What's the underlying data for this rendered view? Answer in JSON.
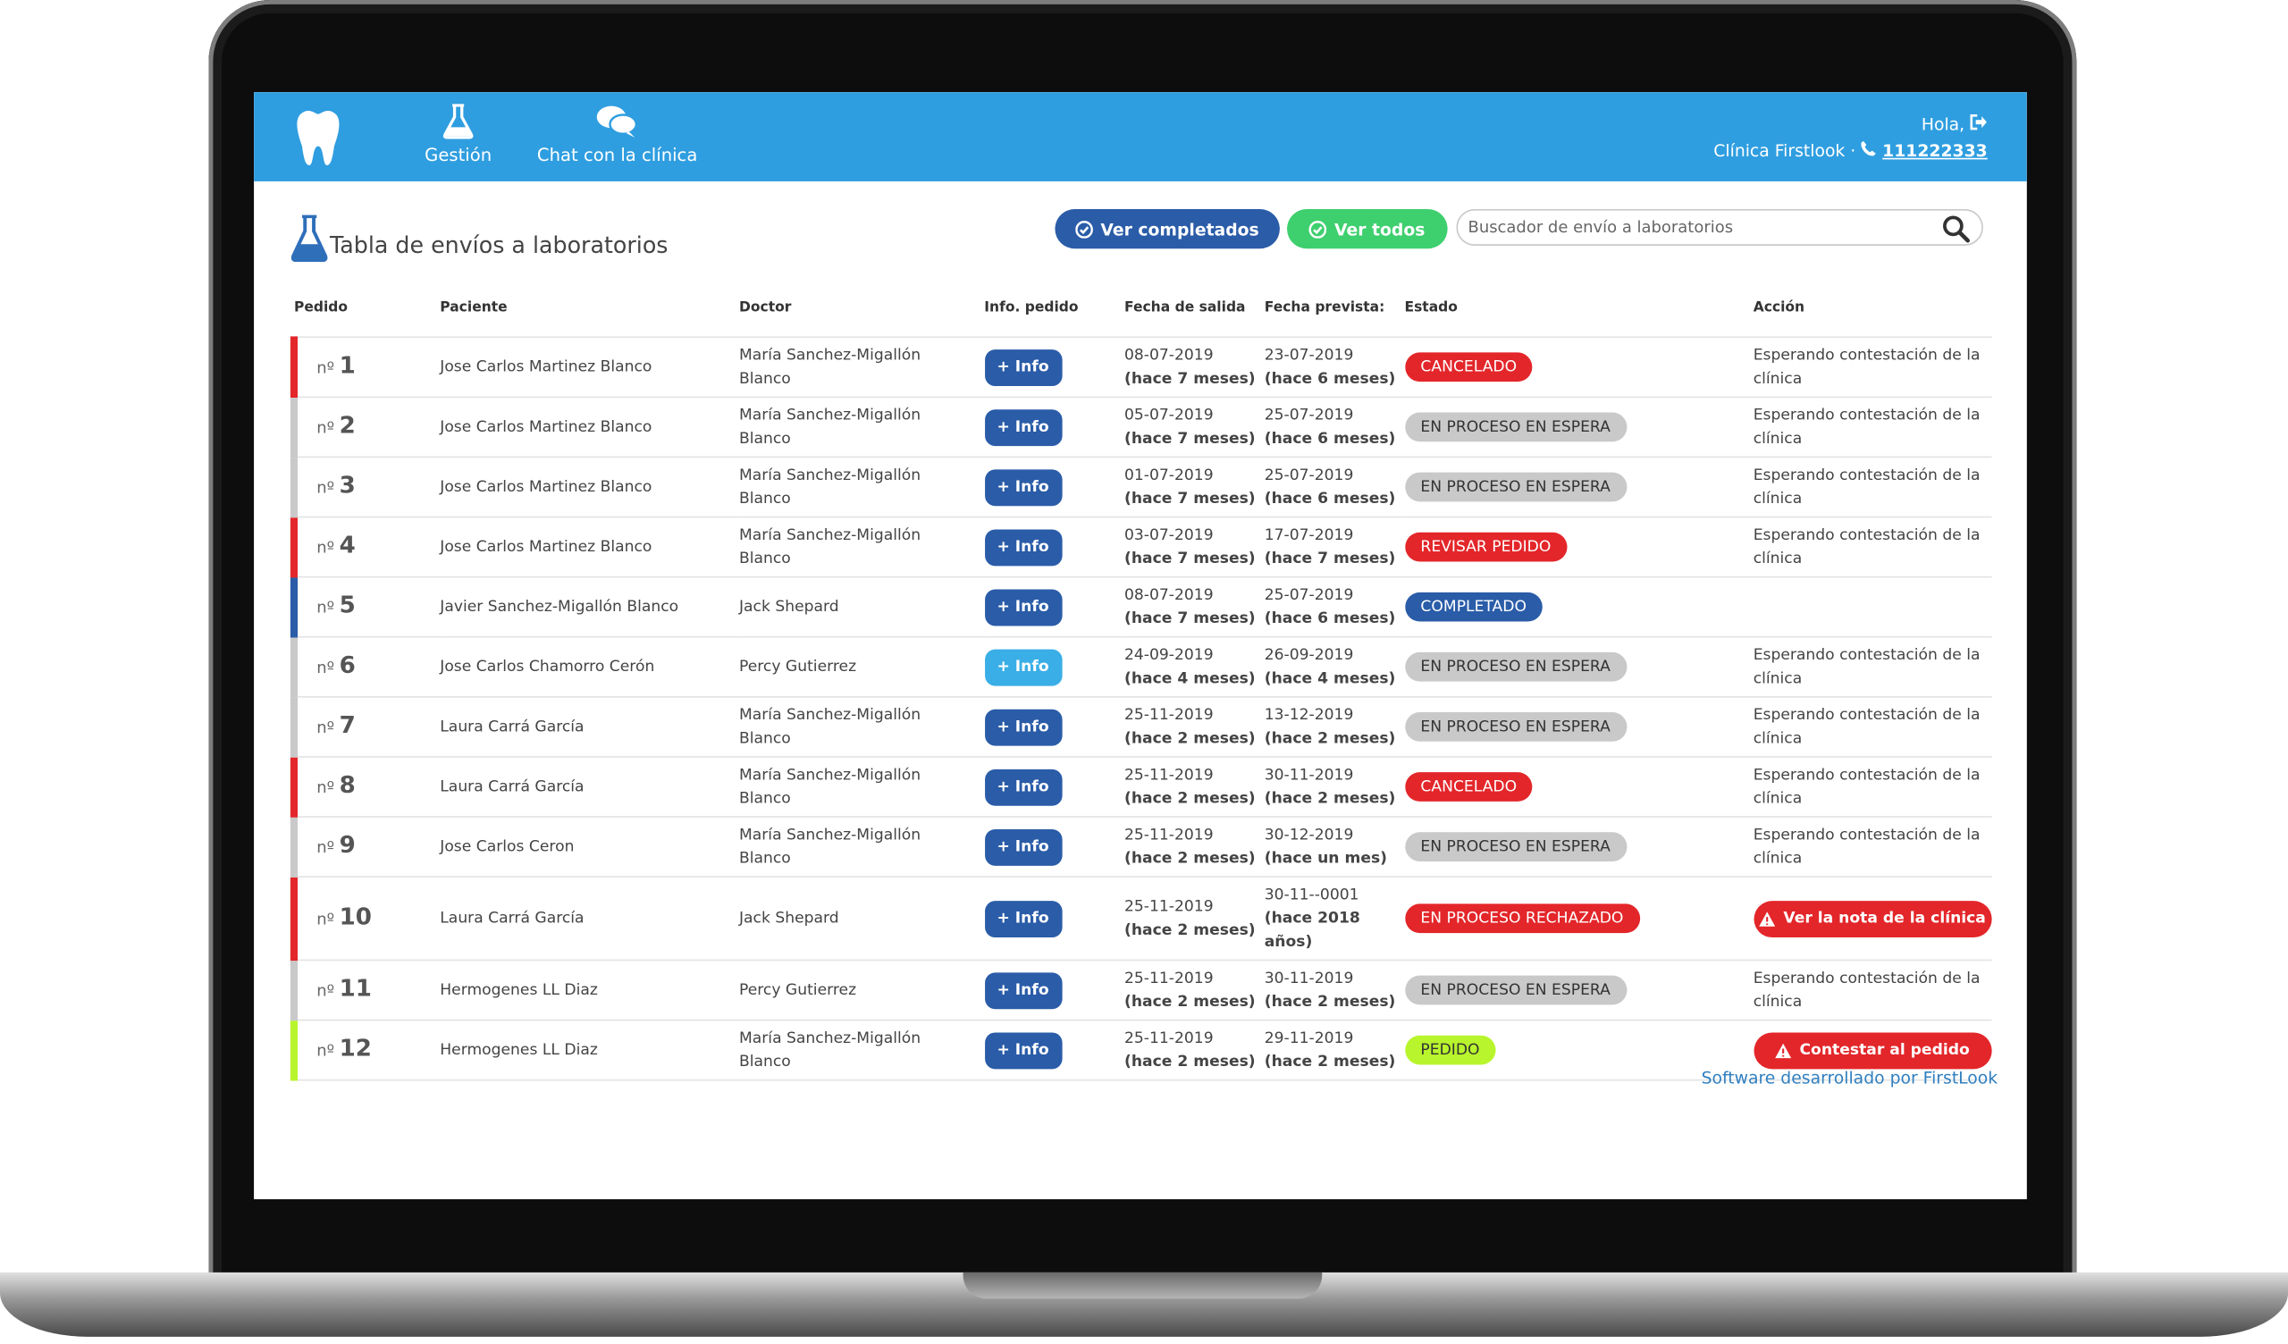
{
  "header": {
    "nav": [
      {
        "label": "Gestión"
      },
      {
        "label": "Chat con la clínica"
      }
    ],
    "greeting": "Hola,",
    "clinic": "Clínica Firstlook ·",
    "phone": "111222333"
  },
  "page": {
    "title": "Tabla de envíos a laboratorios",
    "buttons": [
      {
        "label": "Ver completados",
        "color": "#2a5ca8"
      },
      {
        "label": "Ver todos",
        "color": "#3ecf6e"
      }
    ],
    "search_placeholder": "Buscador de envío a laboratorios"
  },
  "table": {
    "columns": [
      "Pedido",
      "Paciente",
      "Doctor",
      "Info. pedido",
      "Fecha de salida",
      "Fecha prevista:",
      "Estado",
      "Acción"
    ],
    "rows": [
      {
        "prefix": "nº",
        "number": 1,
        "patient": "Jose Carlos Martinez Blanco",
        "doctor": "María Sanchez-Migallón Blanco",
        "info": "+ Info",
        "departure": "08-07-2019",
        "departure_ago": "(hace 7 meses)",
        "expected": "23-07-2019",
        "expected_ago": "(hace 6 meses)",
        "status": "CANCELADO",
        "color": "#e3262a",
        "action": "Esperando contestación de la clínica"
      },
      {
        "prefix": "nº",
        "number": 2,
        "patient": "Jose Carlos Martinez Blanco",
        "doctor": "María Sanchez-Migallón Blanco",
        "info": "+ Info",
        "departure": "05-07-2019",
        "departure_ago": "(hace 7 meses)",
        "expected": "25-07-2019",
        "expected_ago": "(hace 6 meses)",
        "status": "EN PROCESO EN ESPERA",
        "color": "#c9c9c9",
        "action": "Esperando contestación de la clínica"
      },
      {
        "prefix": "nº",
        "number": 3,
        "patient": "Jose Carlos Martinez Blanco",
        "doctor": "María Sanchez-Migallón Blanco",
        "info": "+ Info",
        "departure": "01-07-2019",
        "departure_ago": "(hace 7 meses)",
        "expected": "25-07-2019",
        "expected_ago": "(hace 6 meses)",
        "status": "EN PROCESO EN ESPERA",
        "color": "#c9c9c9",
        "action": "Esperando contestación de la clínica"
      },
      {
        "prefix": "nº",
        "number": 4,
        "patient": "Jose Carlos Martinez Blanco",
        "doctor": "María Sanchez-Migallón Blanco",
        "info": "+ Info",
        "departure": "03-07-2019",
        "departure_ago": "(hace 7 meses)",
        "expected": "17-07-2019",
        "expected_ago": "(hace 7 meses)",
        "status": "REVISAR PEDIDO",
        "color": "#e3262a",
        "action": "Esperando contestación de la clínica"
      },
      {
        "prefix": "nº",
        "number": 5,
        "patient": "Javier Sanchez-Migallón Blanco",
        "doctor": "Jack Shepard",
        "info": "+ Info",
        "departure": "08-07-2019",
        "departure_ago": "(hace 7 meses)",
        "expected": "25-07-2019",
        "expected_ago": "(hace 6 meses)",
        "status": "COMPLETADO",
        "color": "#2a5ca8"
      },
      {
        "prefix": "nº",
        "number": 6,
        "patient": "Jose Carlos Chamorro Cerón",
        "doctor": "Percy Gutierrez",
        "info": "+ Info",
        "info_color": "#3aaee6",
        "departure": "24-09-2019",
        "departure_ago": "(hace 4 meses)",
        "expected": "26-09-2019",
        "expected_ago": "(hace 4 meses)",
        "status": "EN PROCESO EN ESPERA",
        "color": "#c9c9c9",
        "action": "Esperando contestación de la clínica"
      },
      {
        "prefix": "nº",
        "number": 7,
        "patient": "Laura Carrá García",
        "doctor": "María Sanchez-Migallón Blanco",
        "info": "+ Info",
        "departure": "25-11-2019",
        "departure_ago": "(hace 2 meses)",
        "expected": "13-12-2019",
        "expected_ago": "(hace 2 meses)",
        "status": "EN PROCESO EN ESPERA",
        "color": "#c9c9c9",
        "action": "Esperando contestación de la clínica"
      },
      {
        "prefix": "nº",
        "number": 8,
        "patient": "Laura Carrá García",
        "doctor": "María Sanchez-Migallón Blanco",
        "info": "+ Info",
        "departure": "25-11-2019",
        "departure_ago": "(hace 2 meses)",
        "expected": "30-11-2019",
        "expected_ago": "(hace 2 meses)",
        "status": "CANCELADO",
        "color": "#e3262a",
        "action": "Esperando contestación de la clínica"
      },
      {
        "prefix": "nº",
        "number": 9,
        "patient": "Jose Carlos Ceron",
        "doctor": "María Sanchez-Migallón Blanco",
        "info": "+ Info",
        "departure": "25-11-2019",
        "departure_ago": "(hace 2 meses)",
        "expected": "30-12-2019",
        "expected_ago": "(hace un mes)",
        "status": "EN PROCESO EN ESPERA",
        "color": "#c9c9c9",
        "action": "Esperando contestación de la clínica"
      },
      {
        "prefix": "nº",
        "number": 10,
        "patient": "Laura Carrá García",
        "doctor": "Jack Shepard",
        "info": "+ Info",
        "departure": "25-11-2019",
        "departure_ago": "(hace 2 meses)",
        "expected": "30-11--0001",
        "expected_ago": "(hace 2018 años)",
        "status": "EN PROCESO RECHAZADO",
        "color": "#e3262a",
        "action_button": "Ver la nota de la clínica"
      },
      {
        "prefix": "nº",
        "number": 11,
        "patient": "Hermogenes LL Diaz",
        "doctor": "Percy Gutierrez",
        "info": "+ Info",
        "departure": "25-11-2019",
        "departure_ago": "(hace 2 meses)",
        "expected": "30-11-2019",
        "expected_ago": "(hace 2 meses)",
        "status": "EN PROCESO EN ESPERA",
        "color": "#c9c9c9",
        "action": "Esperando contestación de la clínica"
      },
      {
        "prefix": "nº",
        "number": 12,
        "patient": "Hermogenes LL Diaz",
        "doctor": "María Sanchez-Migallón Blanco",
        "info": "+ Info",
        "departure": "25-11-2019",
        "departure_ago": "(hace 2 meses)",
        "expected": "29-11-2019",
        "expected_ago": "(hace 2 meses)",
        "status": "PEDIDO",
        "color": "#b8f52c",
        "action_button": "Contestar al pedido"
      }
    ]
  },
  "footer": "Software desarrollado por FirstLook"
}
